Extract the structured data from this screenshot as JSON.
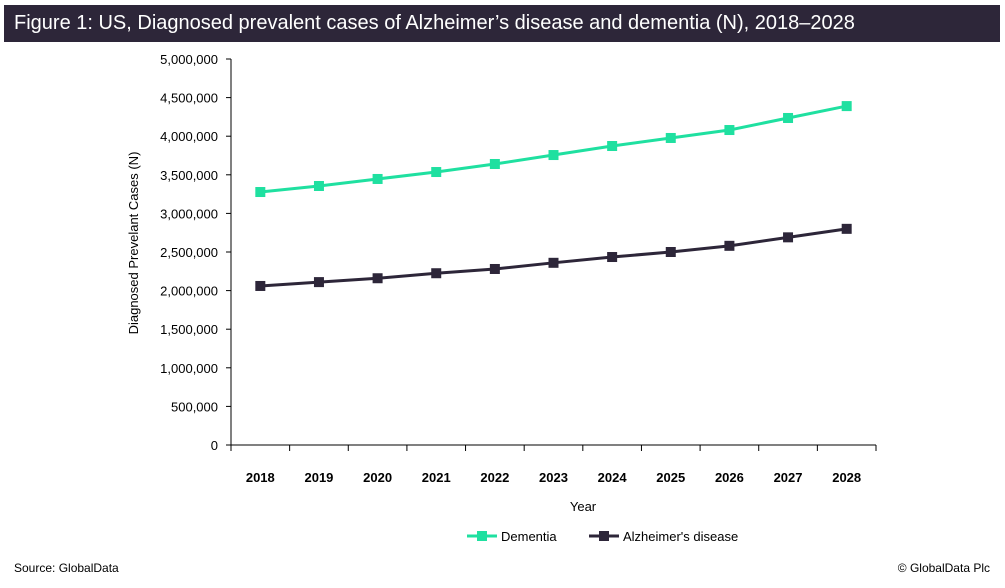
{
  "title": "Figure 1: US, Diagnosed prevalent cases of Alzheimer’s disease and dementia (N), 2018–2028",
  "source": "Source: GlobalData",
  "copyright": "© GlobalData Plc",
  "chart_data": {
    "type": "line",
    "title": "Figure 1: US, Diagnosed prevalent cases of Alzheimer’s disease and dementia (N), 2018–2028",
    "xlabel": "Year",
    "ylabel": "Diagnosed Prevelant Cases (N)",
    "ylim": [
      0,
      5000000
    ],
    "yticks": [
      "0",
      "500,000",
      "1,000,000",
      "1,500,000",
      "2,000,000",
      "2,500,000",
      "3,000,000",
      "3,500,000",
      "4,000,000",
      "4,500,000",
      "5,000,000"
    ],
    "categories": [
      "2018",
      "2019",
      "2020",
      "2021",
      "2022",
      "2023",
      "2024",
      "2025",
      "2026",
      "2027",
      "2028"
    ],
    "legend_position": "bottom",
    "series": [
      {
        "name": "Dementia",
        "color": "#1fe0a0",
        "values": [
          3277000,
          3355000,
          3446000,
          3536000,
          3640000,
          3756000,
          3873000,
          3977000,
          4080000,
          4236000,
          4390000
        ]
      },
      {
        "name": "Alzheimer's disease",
        "color": "#2d2639",
        "values": [
          2060000,
          2110000,
          2160000,
          2225000,
          2280000,
          2360000,
          2435000,
          2500000,
          2580000,
          2690000,
          2800000
        ]
      }
    ]
  }
}
